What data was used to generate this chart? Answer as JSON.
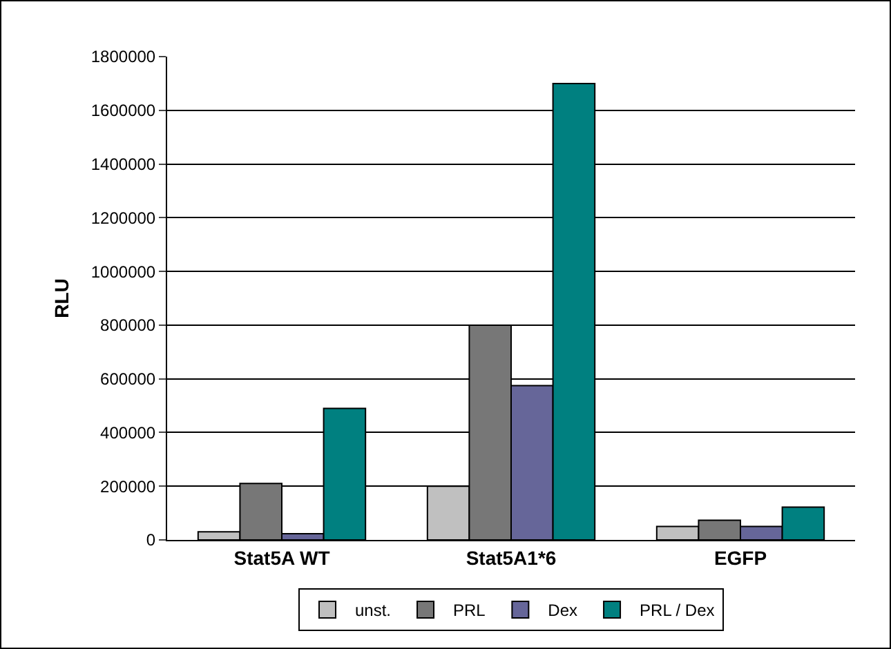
{
  "chart_data": {
    "type": "bar",
    "ylabel": "RLU",
    "categories": [
      "Stat5A WT",
      "Stat5A1*6",
      "EGFP"
    ],
    "series": [
      {
        "name": "unst.",
        "color": "#c0c0c0",
        "values": [
          30000,
          200000,
          50000
        ]
      },
      {
        "name": "PRL",
        "color": "#777777",
        "values": [
          210000,
          800000,
          73000
        ]
      },
      {
        "name": "Dex",
        "color": "#666699",
        "values": [
          23000,
          575000,
          50000
        ]
      },
      {
        "name": "PRL / Dex",
        "color": "#008080",
        "values": [
          490000,
          1700000,
          122000
        ]
      }
    ],
    "ylim": [
      0,
      1800000
    ],
    "yticks": [
      0,
      200000,
      400000,
      600000,
      800000,
      1000000,
      1200000,
      1400000,
      1600000,
      1800000
    ],
    "grid": "y",
    "legend": "bottom"
  }
}
